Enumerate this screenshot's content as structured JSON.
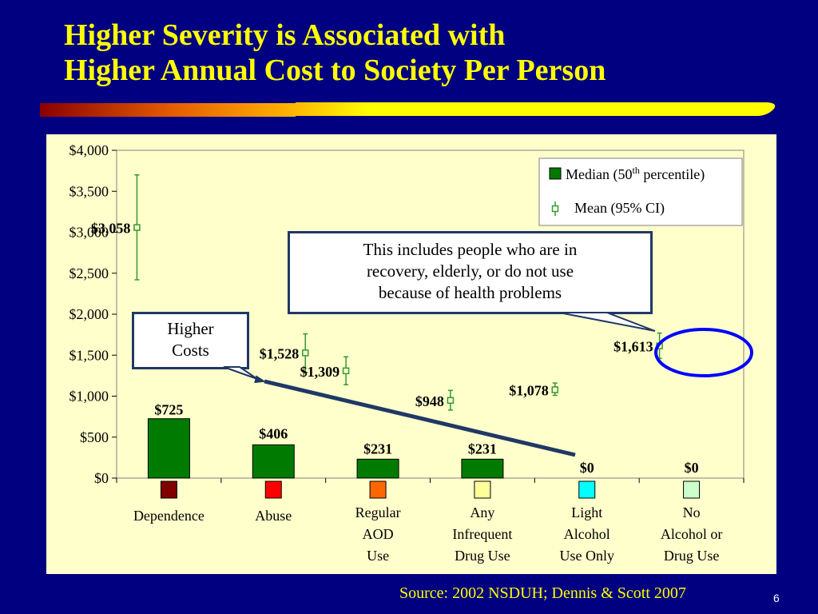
{
  "title": {
    "line1": "Higher Severity is Associated with",
    "line2": "Higher Annual Cost to Society Per Person"
  },
  "colors": {
    "background": "#000080",
    "title": "#FFFF00",
    "plot_background": "#FFFFCC",
    "bar": "#007A00",
    "error_bar": "#339933",
    "callout_border": "#1F3866",
    "highlight_circle": "#0000FF",
    "arrow": "#1F3866"
  },
  "chart_data": {
    "type": "bar",
    "title": "",
    "xlabel": "",
    "ylabel": "",
    "ylim": [
      0,
      4000
    ],
    "y_ticks": [
      0,
      500,
      1000,
      1500,
      2000,
      2500,
      3000,
      3500,
      4000
    ],
    "y_tick_labels": [
      "$0",
      "$500",
      "$1,000",
      "$1,500",
      "$2,000",
      "$2,500",
      "$3,000",
      "$3,500",
      "$4,000"
    ],
    "grid": false,
    "legend_position": "top-right",
    "categories": [
      {
        "lines": [
          "Dependence"
        ],
        "swatch": "#800000"
      },
      {
        "lines": [
          "Abuse"
        ],
        "swatch": "#FF0000"
      },
      {
        "lines": [
          "Regular",
          "AOD",
          "Use"
        ],
        "swatch": "#FF6600"
      },
      {
        "lines": [
          "Any",
          "Infrequent",
          "Drug Use"
        ],
        "swatch": "#FFFF99"
      },
      {
        "lines": [
          "Light",
          "Alcohol",
          "Use Only"
        ],
        "swatch": "#00FFFF"
      },
      {
        "lines": [
          "No",
          "Alcohol or",
          "Drug Use"
        ],
        "swatch": "#CCFFCC"
      }
    ],
    "series": [
      {
        "name": "Median (50th percentile)",
        "type": "bar",
        "values": [
          725,
          406,
          231,
          231,
          0,
          0
        ],
        "labels": [
          "$725",
          "$406",
          "$231",
          "$231",
          "$0",
          "$0"
        ]
      },
      {
        "name": "Mean (95% CI)",
        "type": "point_with_error",
        "values": [
          3058,
          1528,
          1309,
          948,
          1078,
          1613
        ],
        "ci_low": [
          2420,
          1290,
          1140,
          830,
          1010,
          1460
        ],
        "ci_high": [
          3700,
          1760,
          1480,
          1070,
          1160,
          1770
        ],
        "labels": [
          "$3,058",
          "$1,528",
          "$1,309",
          "$948",
          "$1,078",
          "$1,613"
        ]
      }
    ],
    "legend": {
      "median_prefix": "Median (50",
      "median_sup": "th",
      "median_suffix": " percentile)",
      "mean": "Mean (95% CI)"
    }
  },
  "callouts": {
    "higher_costs": [
      "Higher",
      "Costs"
    ],
    "includes_note": [
      "This includes  people who are in",
      "recovery, elderly, or do not use",
      "because of health problems"
    ]
  },
  "footer": {
    "source": "Source: 2002 NSDUH; Dennis & Scott 2007",
    "page_number": "6"
  }
}
